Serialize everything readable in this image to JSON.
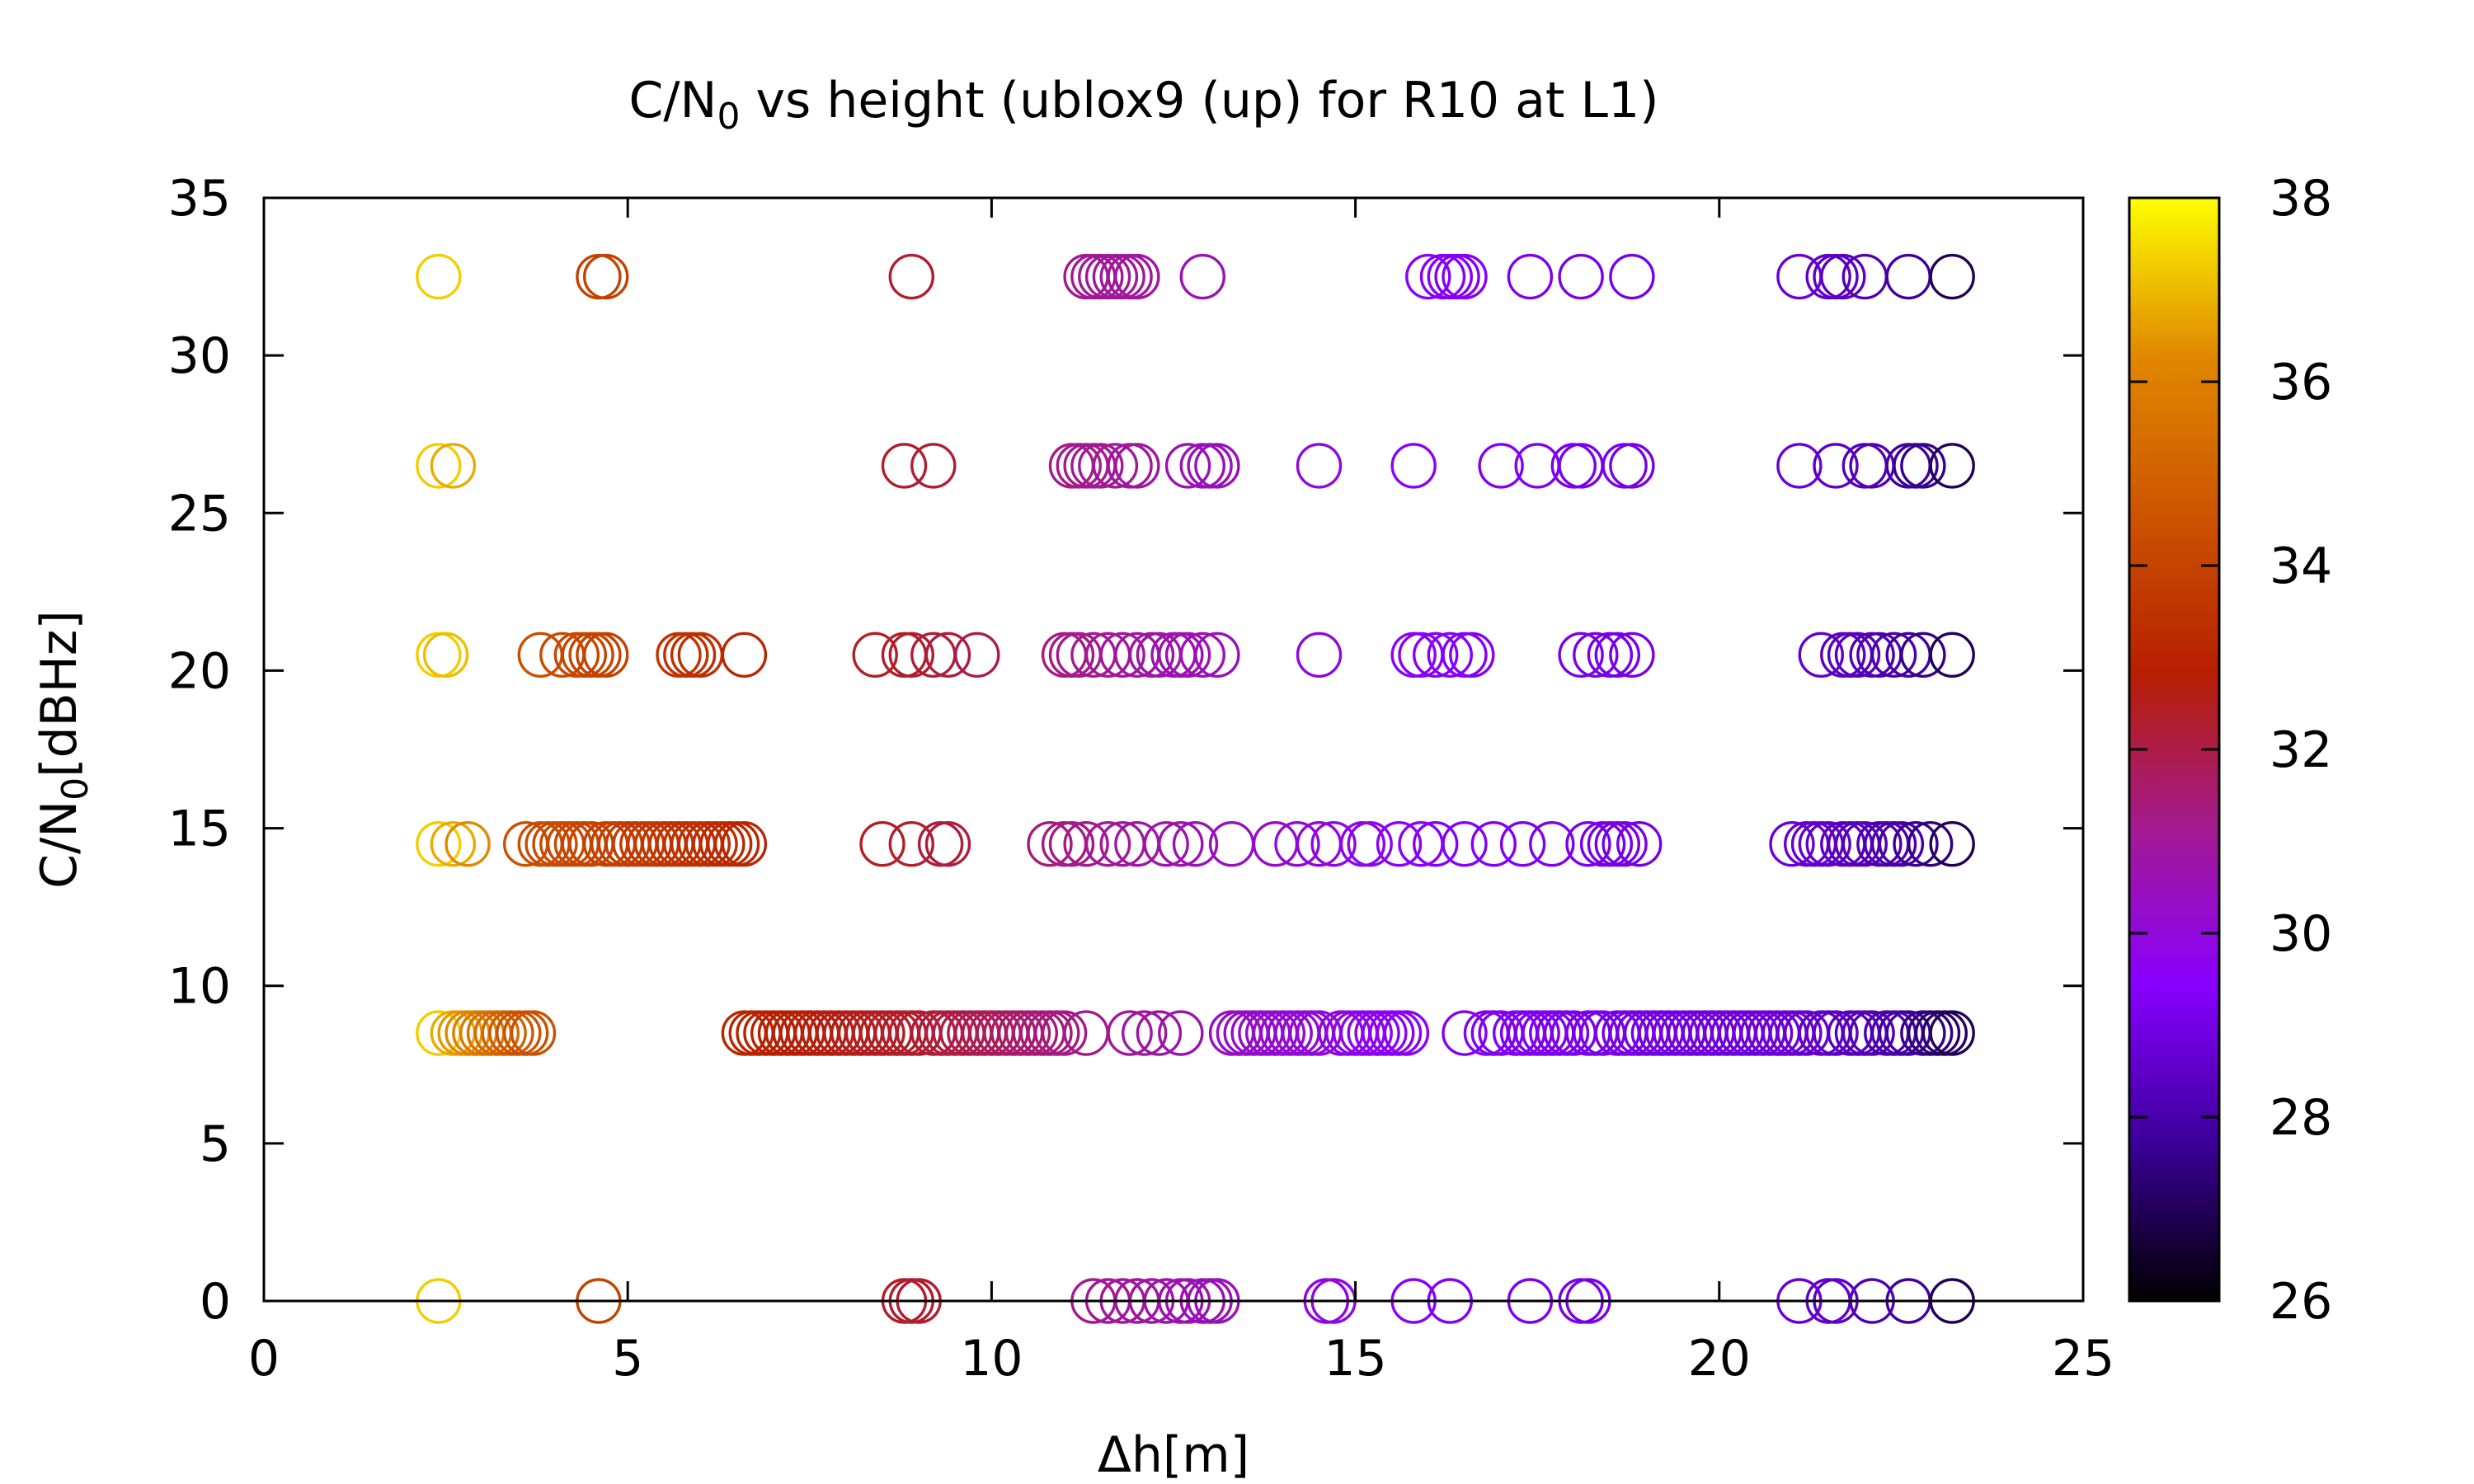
{
  "chart_data": {
    "type": "scatter",
    "title": "C/N",
    "title_subscript": "0",
    "title_rest": " vs height (ublox9 (up) for R10 at L1)",
    "xlabel": "Δh[m]",
    "ylabel_main": "C/N",
    "ylabel_sub": "0",
    "ylabel_rest": "[dBHz]",
    "xlim": [
      0,
      25
    ],
    "ylim": [
      0,
      35
    ],
    "xticks": [
      "0",
      "5",
      "10",
      "15",
      "20",
      "25"
    ],
    "yticks": [
      "0",
      "5",
      "10",
      "15",
      "20",
      "25",
      "30",
      "35"
    ],
    "grid": false,
    "colorbar": {
      "range": [
        26,
        38
      ],
      "ticks": [
        "26",
        "28",
        "30",
        "32",
        "34",
        "36",
        "38"
      ],
      "palette": [
        "#000000",
        "#3b0099",
        "#8800ff",
        "#a31a90",
        "#b71f00",
        "#cc5500",
        "#e08800",
        "#ffff00"
      ]
    },
    "marker": "open-circle",
    "series": [
      {
        "y": 32.5,
        "x": [
          2.4,
          4.6,
          4.7,
          8.9,
          11.3,
          11.4,
          11.5,
          11.6,
          11.7,
          11.8,
          11.9,
          12.0,
          12.9,
          16.0,
          16.2,
          16.3,
          16.4,
          16.5,
          17.4,
          18.1,
          18.8,
          21.1,
          21.5,
          21.6,
          21.7,
          22.0,
          22.6,
          23.2
        ]
      },
      {
        "y": 26.5,
        "x": [
          2.4,
          2.6,
          8.8,
          9.2,
          11.1,
          11.2,
          11.3,
          11.4,
          11.5,
          11.7,
          11.9,
          12.0,
          12.7,
          12.9,
          13.0,
          13.1,
          14.5,
          15.8,
          17.0,
          17.5,
          18.0,
          18.1,
          18.7,
          18.8,
          21.1,
          21.6,
          22.0,
          22.1,
          22.6,
          22.7,
          22.8,
          23.2
        ]
      },
      {
        "y": 20.5,
        "x": [
          2.4,
          2.5,
          3.8,
          4.1,
          4.3,
          4.4,
          4.5,
          4.6,
          4.7,
          5.7,
          5.8,
          5.9,
          6.0,
          6.6,
          8.4,
          8.8,
          8.9,
          9.2,
          9.4,
          9.8,
          11.0,
          11.1,
          11.2,
          11.4,
          11.6,
          11.8,
          12.0,
          12.2,
          12.3,
          12.5,
          12.6,
          12.7,
          12.9,
          13.1,
          14.5,
          15.8,
          15.9,
          16.1,
          16.3,
          16.5,
          16.6,
          18.1,
          18.3,
          18.5,
          18.6,
          18.8,
          21.4,
          21.7,
          21.8,
          21.9,
          22.1,
          22.2,
          22.4,
          22.6,
          22.8,
          23.2
        ]
      },
      {
        "y": 14.5,
        "x": [
          2.4,
          2.6,
          2.8,
          3.6,
          3.8,
          3.9,
          4.0,
          4.1,
          4.2,
          4.3,
          4.4,
          4.5,
          4.7,
          4.8,
          4.9,
          5.0,
          5.1,
          5.2,
          5.3,
          5.4,
          5.5,
          5.6,
          5.7,
          5.8,
          5.9,
          6.0,
          6.1,
          6.2,
          6.3,
          6.4,
          6.5,
          6.6,
          8.5,
          8.9,
          9.3,
          9.4,
          10.8,
          11.0,
          11.1,
          11.3,
          11.6,
          11.8,
          12.0,
          12.4,
          12.6,
          12.8,
          13.3,
          13.9,
          14.2,
          14.5,
          14.7,
          15.1,
          15.2,
          15.6,
          15.9,
          16.1,
          16.5,
          16.9,
          17.3,
          17.7,
          18.2,
          18.4,
          18.5,
          18.6,
          18.7,
          18.9,
          21.0,
          21.2,
          21.3,
          21.4,
          21.5,
          21.7,
          21.8,
          21.9,
          22.0,
          22.2,
          22.3,
          22.4,
          22.5,
          22.7,
          22.9,
          23.2
        ]
      },
      {
        "y": 8.5,
        "x": [
          2.4,
          2.6,
          2.7,
          2.8,
          2.9,
          3.0,
          3.1,
          3.2,
          3.3,
          3.4,
          3.5,
          3.6,
          3.7,
          6.6,
          6.7,
          6.8,
          6.9,
          7.0,
          7.1,
          7.2,
          7.3,
          7.4,
          7.5,
          7.6,
          7.7,
          7.8,
          7.9,
          8.0,
          8.1,
          8.2,
          8.3,
          8.4,
          8.5,
          8.6,
          8.7,
          8.8,
          8.9,
          9.0,
          9.2,
          9.3,
          9.4,
          9.5,
          9.6,
          9.7,
          9.8,
          9.9,
          10.0,
          10.1,
          10.2,
          10.3,
          10.4,
          10.5,
          10.6,
          10.7,
          10.8,
          10.9,
          11.0,
          11.3,
          11.9,
          12.1,
          12.3,
          12.6,
          13.3,
          13.4,
          13.5,
          13.6,
          13.7,
          13.8,
          13.9,
          14.0,
          14.1,
          14.2,
          14.3,
          14.4,
          14.5,
          14.8,
          14.9,
          15.0,
          15.1,
          15.2,
          15.3,
          15.4,
          15.5,
          15.6,
          15.7,
          16.5,
          16.8,
          16.9,
          17.0,
          17.2,
          17.3,
          17.4,
          17.5,
          17.6,
          17.7,
          17.8,
          17.9,
          18.0,
          18.2,
          18.3,
          18.4,
          18.6,
          18.7,
          18.8,
          18.9,
          19.0,
          19.1,
          19.2,
          19.3,
          19.4,
          19.5,
          19.6,
          19.7,
          19.8,
          19.9,
          20.0,
          20.1,
          20.2,
          20.3,
          20.4,
          20.5,
          20.6,
          20.7,
          20.8,
          20.9,
          21.0,
          21.1,
          21.2,
          21.4,
          21.5,
          21.6,
          21.8,
          21.9,
          22.0,
          22.1,
          22.3,
          22.4,
          22.5,
          22.6,
          22.8,
          22.9,
          23.0,
          23.1,
          23.2
        ]
      },
      {
        "y": 0,
        "x": [
          2.4,
          4.6,
          8.8,
          8.9,
          9.0,
          11.4,
          11.6,
          11.8,
          12.0,
          12.2,
          12.4,
          12.6,
          12.7,
          12.9,
          13.0,
          13.1,
          14.6,
          14.7,
          15.8,
          16.3,
          17.4,
          18.1,
          18.2,
          21.1,
          21.5,
          21.6,
          22.1,
          22.6,
          23.2
        ]
      }
    ]
  }
}
